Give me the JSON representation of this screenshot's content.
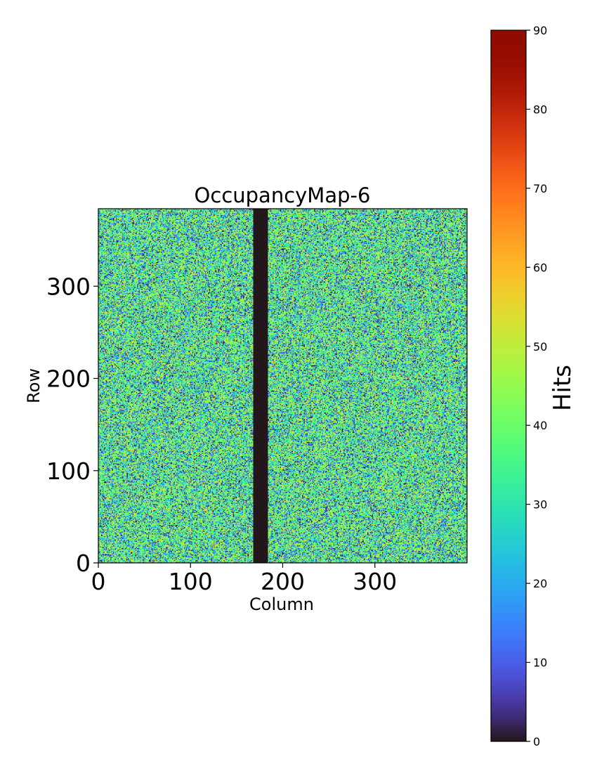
{
  "chart_data": {
    "type": "heatmap",
    "title": "OccupancyMap-6",
    "xlabel": "Column",
    "ylabel": "Row",
    "xlim": [
      0,
      400
    ],
    "ylim": [
      0,
      384
    ],
    "x_ticks": [
      0,
      100,
      200,
      300
    ],
    "y_ticks": [
      0,
      100,
      200,
      300
    ],
    "grid": false,
    "colormap": "turbo",
    "value_distribution": {
      "typical_range": [
        0,
        55
      ],
      "mean_approx": 30
    },
    "dead_columns": {
      "from": 168,
      "to": 184,
      "value": 0
    },
    "colorbar": {
      "label": "Hits",
      "vmin": 0,
      "vmax": 90,
      "ticks": [
        0,
        10,
        20,
        30,
        40,
        50,
        60,
        70,
        80,
        90
      ]
    }
  }
}
